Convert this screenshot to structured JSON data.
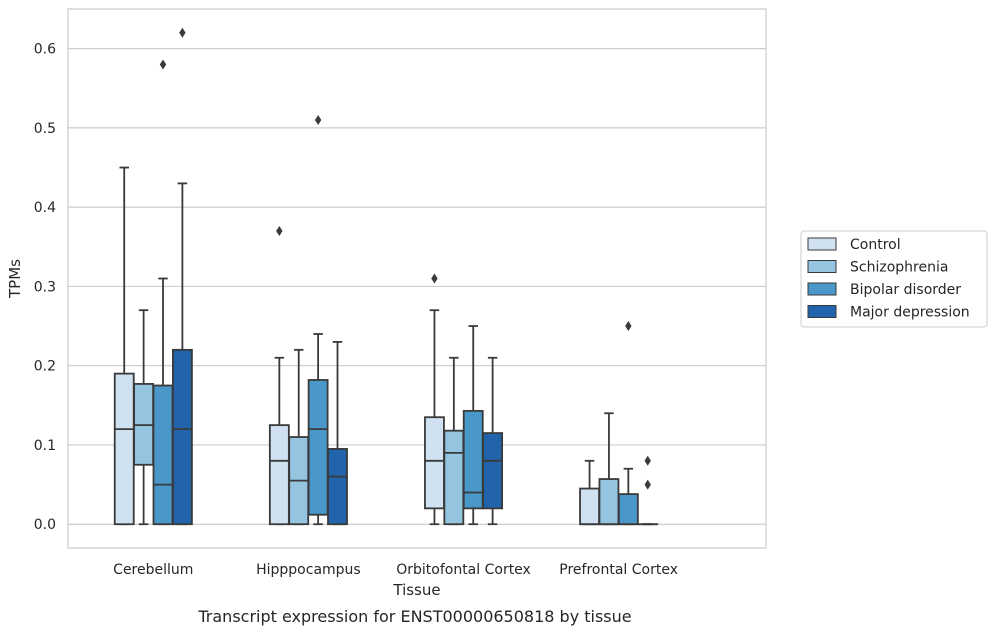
{
  "chart_data": {
    "type": "box",
    "title": "Transcript expression for ENST00000650818 by tissue",
    "xlabel": "Tissue",
    "ylabel": "TPMs",
    "ylim": [
      -0.03,
      0.65
    ],
    "yticks": [
      0.0,
      0.1,
      0.2,
      0.3,
      0.4,
      0.5,
      0.6
    ],
    "ytick_labels": [
      "0.0",
      "0.1",
      "0.2",
      "0.3",
      "0.4",
      "0.5",
      "0.6"
    ],
    "grid": "horizontal",
    "legend_position": "right",
    "categories": [
      "Cerebellum",
      "Hipppocampus",
      "Orbitofontal Cortex",
      "Prefrontal Cortex"
    ],
    "series": [
      {
        "name": "Control",
        "color": "#d0e1f2",
        "boxes": [
          {
            "whislo": 0.0,
            "q1": 0.0,
            "med": 0.12,
            "q3": 0.19,
            "whishi": 0.45,
            "fliers": []
          },
          {
            "whislo": 0.0,
            "q1": 0.0,
            "med": 0.08,
            "q3": 0.125,
            "whishi": 0.21,
            "fliers": [
              0.37
            ]
          },
          {
            "whislo": 0.0,
            "q1": 0.02,
            "med": 0.08,
            "q3": 0.135,
            "whishi": 0.27,
            "fliers": [
              0.31
            ]
          },
          {
            "whislo": 0.0,
            "q1": 0.0,
            "med": 0.0,
            "q3": 0.045,
            "whishi": 0.08,
            "fliers": []
          }
        ]
      },
      {
        "name": "Schizophrenia",
        "color": "#94c4df",
        "boxes": [
          {
            "whislo": 0.0,
            "q1": 0.075,
            "med": 0.125,
            "q3": 0.177,
            "whishi": 0.27,
            "fliers": []
          },
          {
            "whislo": 0.0,
            "q1": 0.0,
            "med": 0.055,
            "q3": 0.11,
            "whishi": 0.22,
            "fliers": []
          },
          {
            "whislo": 0.0,
            "q1": 0.0,
            "med": 0.09,
            "q3": 0.118,
            "whishi": 0.21,
            "fliers": []
          },
          {
            "whislo": 0.0,
            "q1": 0.0,
            "med": 0.0,
            "q3": 0.057,
            "whishi": 0.14,
            "fliers": []
          }
        ]
      },
      {
        "name": "Bipolar disorder",
        "color": "#4a98c9",
        "boxes": [
          {
            "whislo": 0.0,
            "q1": 0.0,
            "med": 0.05,
            "q3": 0.175,
            "whishi": 0.31,
            "fliers": [
              0.58
            ]
          },
          {
            "whislo": 0.0,
            "q1": 0.012,
            "med": 0.12,
            "q3": 0.182,
            "whishi": 0.24,
            "fliers": [
              0.51
            ]
          },
          {
            "whislo": 0.0,
            "q1": 0.02,
            "med": 0.04,
            "q3": 0.143,
            "whishi": 0.25,
            "fliers": []
          },
          {
            "whislo": 0.0,
            "q1": 0.0,
            "med": 0.0,
            "q3": 0.038,
            "whishi": 0.07,
            "fliers": [
              0.25
            ]
          }
        ]
      },
      {
        "name": "Major depression",
        "color": "#2164ab",
        "boxes": [
          {
            "whislo": 0.0,
            "q1": 0.0,
            "med": 0.12,
            "q3": 0.22,
            "whishi": 0.43,
            "fliers": [
              0.62
            ]
          },
          {
            "whislo": 0.0,
            "q1": 0.0,
            "med": 0.06,
            "q3": 0.095,
            "whishi": 0.23,
            "fliers": []
          },
          {
            "whislo": 0.0,
            "q1": 0.02,
            "med": 0.08,
            "q3": 0.115,
            "whishi": 0.21,
            "fliers": []
          },
          {
            "whislo": 0.0,
            "q1": 0.0,
            "med": 0.0,
            "q3": 0.0,
            "whishi": 0.0,
            "fliers": [
              0.08,
              0.05
            ]
          }
        ]
      }
    ]
  }
}
